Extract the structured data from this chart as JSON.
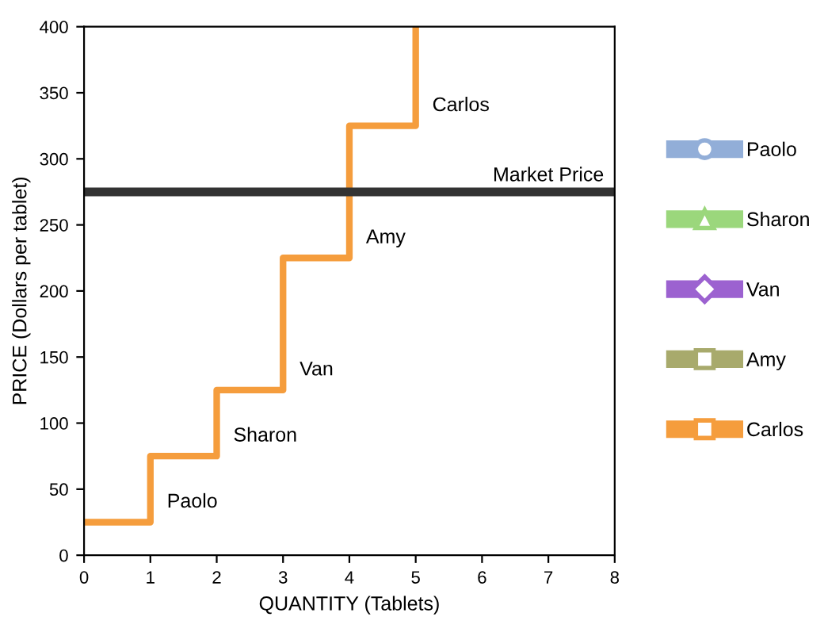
{
  "chart_data": {
    "type": "line",
    "xlabel": "QUANTITY (Tablets)",
    "ylabel": "PRICE (Dollars per tablet)",
    "xlim": [
      0,
      8
    ],
    "xticks": [
      0,
      1,
      2,
      3,
      4,
      5,
      6,
      7,
      8
    ],
    "ylim": [
      0,
      400
    ],
    "yticks": [
      0,
      50,
      100,
      150,
      200,
      250,
      300,
      350,
      400
    ],
    "x": [
      0,
      1,
      1,
      2,
      2,
      3,
      3,
      4,
      4,
      5,
      5
    ],
    "series": [
      {
        "name": "Paolo",
        "color": "#92aed8",
        "values": [
          null,
          null,
          null,
          null,
          null,
          null,
          null,
          null,
          null,
          null,
          null
        ]
      },
      {
        "name": "Sharon",
        "color": "#9bd77c",
        "values": [
          null,
          null,
          null,
          null,
          null,
          null,
          null,
          null,
          null,
          null,
          null
        ]
      },
      {
        "name": "Van",
        "color": "#9c62d0",
        "values": [
          null,
          null,
          null,
          null,
          null,
          null,
          null,
          null,
          null,
          null,
          null
        ]
      },
      {
        "name": "Amy",
        "color": "#a8aa6c",
        "values": [
          null,
          null,
          null,
          null,
          null,
          null,
          null,
          null,
          null,
          null,
          null
        ]
      },
      {
        "name": "Carlos",
        "color": "#f59d3d",
        "values": [
          25,
          25,
          75,
          75,
          125,
          125,
          225,
          225,
          325,
          325,
          400
        ]
      }
    ],
    "ref_lines": [
      {
        "axis": "y",
        "value": 275,
        "label": "Market Price",
        "color": "#333333"
      }
    ],
    "annotations": [
      "Paolo",
      "Sharon",
      "Van",
      "Amy",
      "Carlos"
    ],
    "legend": "right",
    "grid": false
  }
}
